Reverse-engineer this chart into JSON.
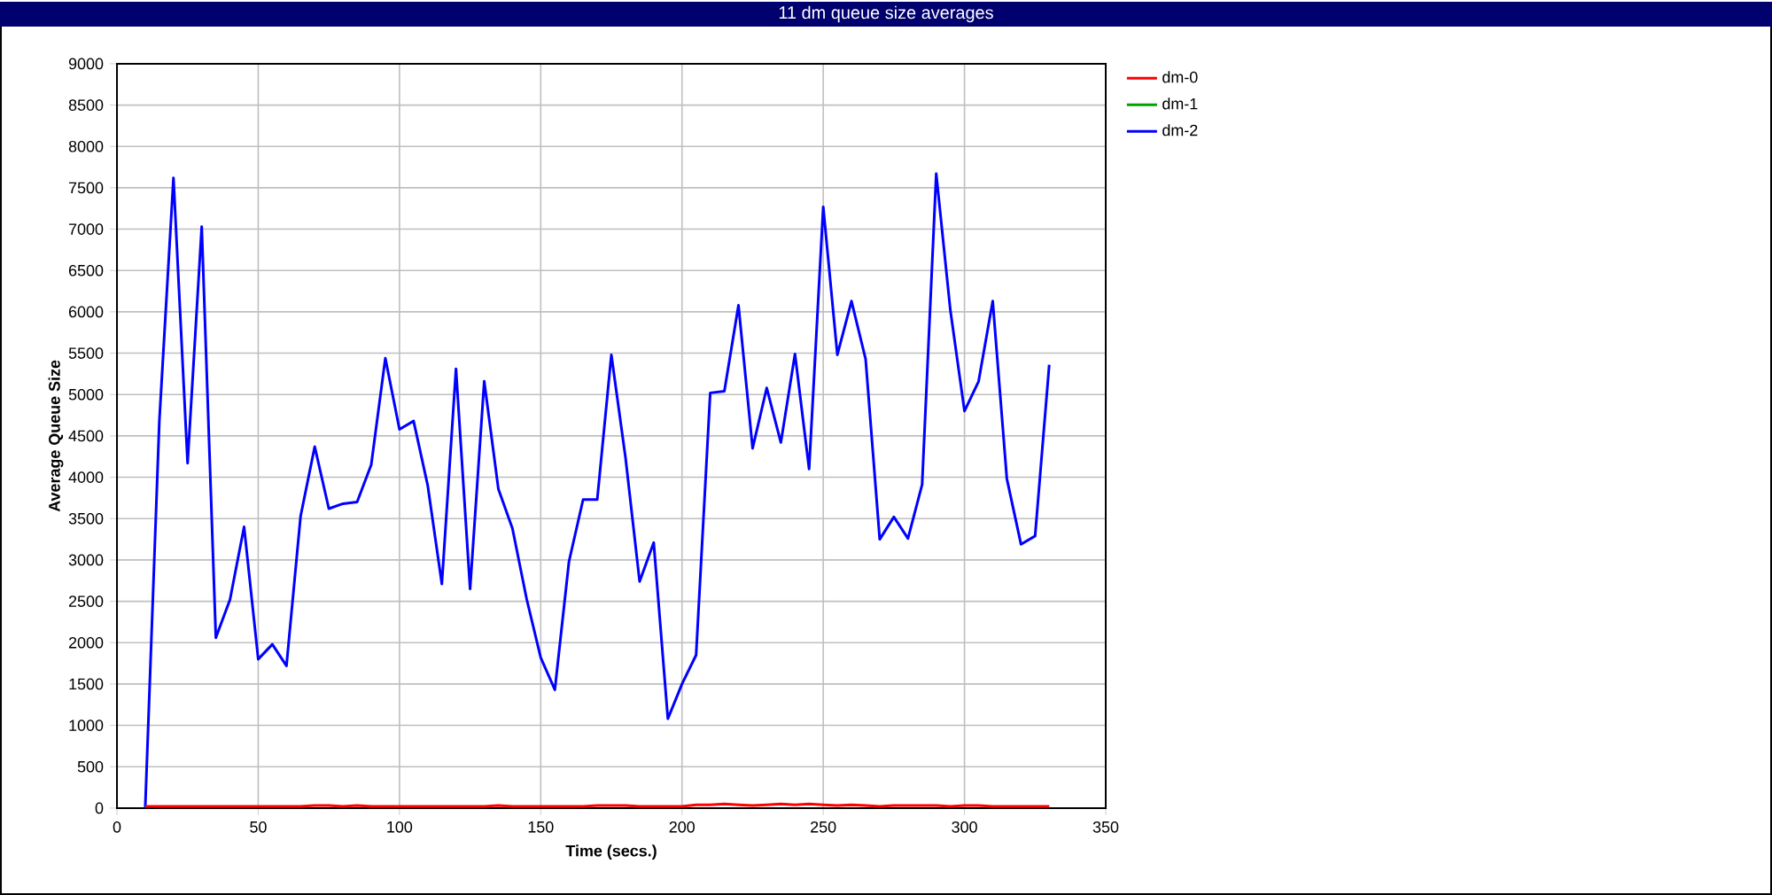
{
  "chart_data": {
    "type": "line",
    "title": "11 dm queue size averages",
    "xlabel": "Time (secs.)",
    "ylabel": "Average Queue Size",
    "x": [
      10,
      15,
      20,
      25,
      30,
      35,
      40,
      45,
      50,
      55,
      60,
      65,
      70,
      75,
      80,
      85,
      90,
      95,
      100,
      105,
      110,
      115,
      120,
      125,
      130,
      135,
      140,
      145,
      150,
      155,
      160,
      165,
      170,
      175,
      180,
      185,
      190,
      195,
      200,
      205,
      210,
      215,
      220,
      225,
      230,
      235,
      240,
      245,
      250,
      255,
      260,
      265,
      270,
      275,
      280,
      285,
      290,
      295,
      300,
      305,
      310,
      315,
      320,
      325,
      330
    ],
    "series": [
      {
        "name": "dm-0",
        "color": "#ff0000",
        "values": [
          20,
          20,
          20,
          20,
          20,
          20,
          20,
          20,
          20,
          20,
          20,
          20,
          30,
          30,
          20,
          30,
          20,
          20,
          20,
          20,
          20,
          20,
          20,
          20,
          20,
          30,
          20,
          20,
          20,
          20,
          20,
          20,
          30,
          30,
          30,
          20,
          20,
          20,
          20,
          40,
          40,
          50,
          40,
          30,
          40,
          50,
          40,
          50,
          40,
          30,
          40,
          30,
          20,
          30,
          30,
          30,
          30,
          20,
          30,
          30,
          20,
          20,
          20,
          20,
          20
        ]
      },
      {
        "name": "dm-1",
        "color": "#00a000",
        "values": [
          null,
          null,
          null,
          null,
          null,
          null,
          null,
          null,
          null,
          null,
          null,
          null,
          null,
          null,
          null,
          null,
          null,
          null,
          null,
          null,
          null,
          null,
          null,
          null,
          null,
          null,
          null,
          null,
          null,
          null,
          null,
          null,
          null,
          null,
          null,
          null,
          null,
          null,
          null,
          null,
          null,
          null,
          null,
          null,
          null,
          null,
          null,
          null,
          null,
          null,
          null,
          null,
          null,
          null,
          null,
          null,
          null,
          null,
          null,
          null,
          null,
          null,
          null,
          null,
          null
        ]
      },
      {
        "name": "dm-2",
        "color": "#0000ff",
        "values": [
          0,
          4680,
          7620,
          4170,
          7030,
          2060,
          2520,
          3400,
          1800,
          1980,
          1720,
          3530,
          4370,
          3620,
          3680,
          3700,
          4150,
          5440,
          4580,
          4680,
          3900,
          2710,
          5310,
          2650,
          5160,
          3860,
          3380,
          2530,
          1820,
          1430,
          2980,
          3730,
          3730,
          5480,
          4240,
          2740,
          3210,
          1080,
          1500,
          1850,
          5020,
          5040,
          6080,
          4350,
          5080,
          4420,
          5490,
          4100,
          7270,
          5480,
          6130,
          5430,
          3250,
          3520,
          3260,
          3910,
          7670,
          6020,
          4800,
          5160,
          6130,
          3980,
          3190,
          3290,
          5360
        ]
      }
    ],
    "xlim": [
      0,
      350
    ],
    "ylim": [
      0,
      9000
    ],
    "xticks": [
      0,
      50,
      100,
      150,
      200,
      250,
      300,
      350
    ],
    "yticks": [
      0,
      500,
      1000,
      1500,
      2000,
      2500,
      3000,
      3500,
      4000,
      4500,
      5000,
      5500,
      6000,
      6500,
      7000,
      7500,
      8000,
      8500,
      9000
    ],
    "grid": true,
    "legend": "top right",
    "line_style": "solid",
    "marker": "none"
  }
}
